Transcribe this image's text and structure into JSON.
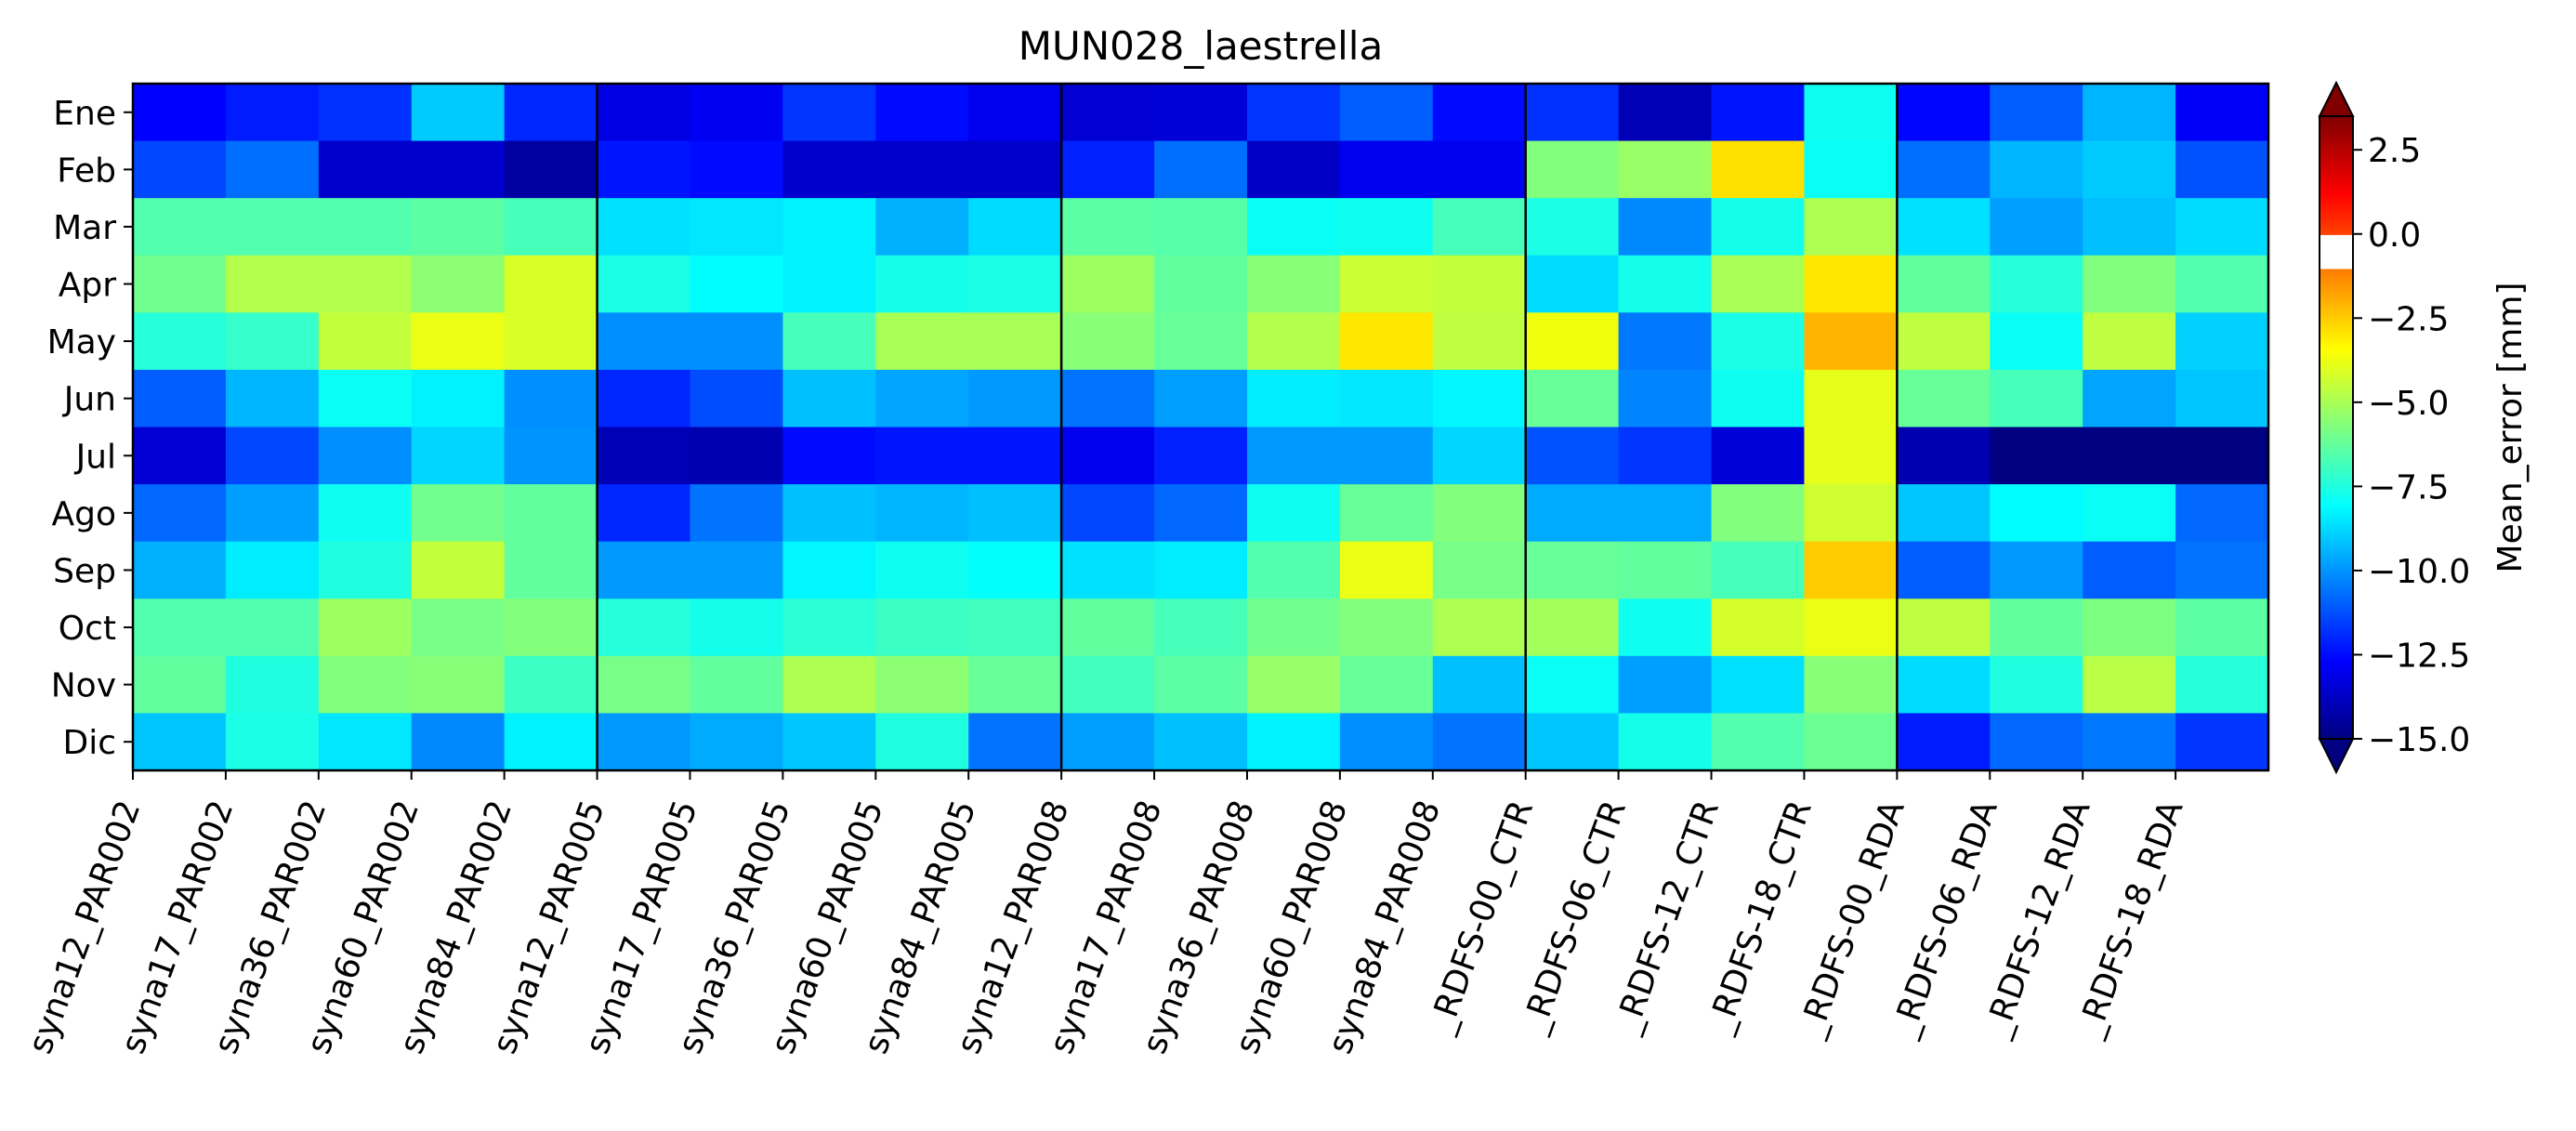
{
  "chart_data": {
    "type": "heatmap",
    "title": "MUN028_laestrella",
    "colorbar_label": "Mean_error [mm]",
    "colorbar_ticks": [
      "2.5",
      "0.0",
      "−2.5",
      "−5.0",
      "−7.5",
      "−10.0",
      "−12.5",
      "−15.0"
    ],
    "colorbar_tick_values": [
      2.5,
      0.0,
      -2.5,
      -5.0,
      -7.5,
      -10.0,
      -12.5,
      -15.0
    ],
    "vmin": -15,
    "vmax": 3.5,
    "colorbar_extend": "both",
    "colormap": "jet with white band between 0 and -1",
    "group_separators_after_columns": [
      5,
      10,
      15,
      19
    ],
    "rows": [
      "Ene",
      "Feb",
      "Mar",
      "Apr",
      "May",
      "Jun",
      "Jul",
      "Ago",
      "Sep",
      "Oct",
      "Nov",
      "Dic"
    ],
    "columns": [
      "syna12_PAR002",
      "syna17_PAR002",
      "syna36_PAR002",
      "syna60_PAR002",
      "syna84_PAR002",
      "syna12_PAR005",
      "syna17_PAR005",
      "syna36_PAR005",
      "syna60_PAR005",
      "syna84_PAR005",
      "syna12_PAR008",
      "syna17_PAR008",
      "syna36_PAR008",
      "syna60_PAR008",
      "syna84_PAR008",
      "_RDFS-00_CTR",
      "_RDFS-06_CTR",
      "_RDFS-12_CTR",
      "_RDFS-18_CTR",
      "_RDFS-00_RDA",
      "_RDFS-06_RDA",
      "_RDFS-12_RDA",
      "_RDFS-18_RDA"
    ],
    "values": [
      [
        -12.7,
        -12.2,
        -11.8,
        -9.0,
        -12.0,
        -13.2,
        -12.9,
        -11.7,
        -12.5,
        -13.0,
        -13.5,
        -13.4,
        -11.7,
        -11.0,
        -12.5,
        -11.8,
        -14.0,
        -12.3,
        -7.8,
        -12.6,
        -11.0,
        -9.4,
        -12.8
      ],
      [
        -11.4,
        -10.7,
        -13.6,
        -13.6,
        -14.4,
        -12.3,
        -12.5,
        -13.6,
        -13.6,
        -13.6,
        -12.1,
        -10.7,
        -13.7,
        -13.0,
        -13.0,
        -5.7,
        -5.3,
        -2.9,
        -7.9,
        -10.7,
        -9.4,
        -9.0,
        -11.2
      ],
      [
        -6.6,
        -6.6,
        -6.6,
        -6.4,
        -6.8,
        -8.6,
        -8.5,
        -8.3,
        -9.5,
        -8.7,
        -6.4,
        -6.5,
        -7.9,
        -7.8,
        -6.8,
        -7.6,
        -10.2,
        -7.7,
        -4.9,
        -8.6,
        -9.8,
        -9.2,
        -8.7
      ],
      [
        -6.0,
        -4.8,
        -4.8,
        -5.5,
        -4.1,
        -7.6,
        -8.1,
        -8.3,
        -7.7,
        -7.6,
        -5.2,
        -6.3,
        -5.6,
        -4.4,
        -4.5,
        -8.7,
        -7.7,
        -5.0,
        -3.0,
        -6.3,
        -7.4,
        -5.7,
        -6.6
      ],
      [
        -7.4,
        -7.1,
        -4.5,
        -3.8,
        -4.1,
        -10.1,
        -10.1,
        -6.8,
        -5.0,
        -5.0,
        -5.6,
        -6.2,
        -4.8,
        -3.0,
        -4.6,
        -3.7,
        -10.5,
        -7.6,
        -2.1,
        -4.6,
        -7.9,
        -4.6,
        -8.9
      ],
      [
        -11.0,
        -9.4,
        -7.9,
        -8.3,
        -10.1,
        -12.0,
        -11.3,
        -9.2,
        -9.7,
        -9.9,
        -10.6,
        -9.8,
        -8.4,
        -8.5,
        -8.2,
        -6.2,
        -10.3,
        -7.8,
        -3.9,
        -6.2,
        -6.8,
        -9.7,
        -9.1
      ],
      [
        -13.5,
        -11.4,
        -10.1,
        -8.8,
        -10.0,
        -14.0,
        -14.1,
        -12.5,
        -12.3,
        -12.3,
        -13.0,
        -12.1,
        -9.9,
        -9.9,
        -8.8,
        -11.2,
        -11.7,
        -13.4,
        -3.9,
        -14.1,
        -15.1,
        -15.1,
        -15.1
      ],
      [
        -10.8,
        -9.8,
        -7.8,
        -6.0,
        -6.3,
        -12.0,
        -10.6,
        -9.2,
        -9.4,
        -9.2,
        -11.4,
        -10.8,
        -7.8,
        -6.2,
        -5.7,
        -9.6,
        -9.6,
        -5.7,
        -4.3,
        -9.1,
        -8.1,
        -7.9,
        -10.8
      ],
      [
        -9.5,
        -8.4,
        -7.5,
        -4.5,
        -6.3,
        -9.9,
        -9.9,
        -8.2,
        -7.8,
        -8.0,
        -8.6,
        -8.4,
        -6.6,
        -3.8,
        -5.9,
        -6.2,
        -6.3,
        -6.8,
        -2.5,
        -11.0,
        -9.9,
        -11.0,
        -10.6
      ],
      [
        -6.6,
        -6.6,
        -5.2,
        -5.9,
        -5.7,
        -7.4,
        -7.7,
        -7.3,
        -7.0,
        -6.9,
        -6.3,
        -6.8,
        -6.0,
        -5.7,
        -4.9,
        -5.1,
        -7.8,
        -4.2,
        -3.8,
        -4.6,
        -6.3,
        -5.8,
        -6.4
      ],
      [
        -6.3,
        -7.5,
        -5.7,
        -5.6,
        -7.0,
        -5.9,
        -6.3,
        -4.9,
        -5.5,
        -6.2,
        -6.9,
        -6.4,
        -5.3,
        -6.2,
        -9.2,
        -7.9,
        -9.8,
        -8.6,
        -5.6,
        -8.7,
        -7.5,
        -4.7,
        -7.4
      ],
      [
        -9.1,
        -7.6,
        -8.5,
        -10.2,
        -8.3,
        -9.9,
        -9.6,
        -9.1,
        -7.5,
        -10.6,
        -9.8,
        -9.2,
        -8.3,
        -10.1,
        -10.6,
        -9.1,
        -7.7,
        -6.6,
        -6.1,
        -12.2,
        -10.8,
        -10.5,
        -11.7
      ]
    ]
  }
}
